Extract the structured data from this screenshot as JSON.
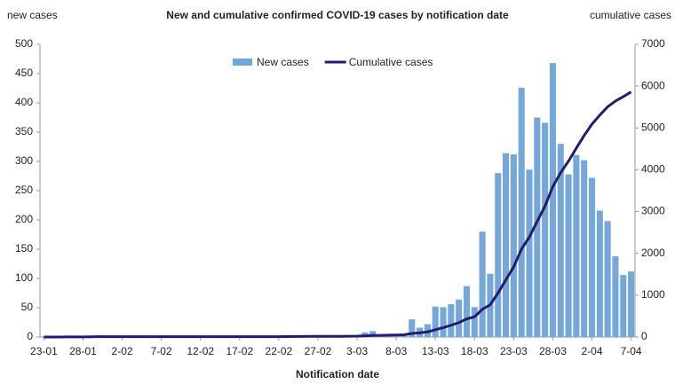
{
  "chart_data": {
    "type": "bar",
    "title": "New and cumulative confirmed COVID-19 cases by notification date",
    "y_label": "new cases",
    "y2_label": "cumulative cases",
    "x_label": "Notification date",
    "categories": [
      "23-01",
      null,
      null,
      null,
      null,
      "28-01",
      null,
      null,
      null,
      null,
      "2-02",
      null,
      null,
      null,
      null,
      "7-02",
      null,
      null,
      null,
      null,
      "12-02",
      null,
      null,
      null,
      null,
      "17-02",
      null,
      null,
      null,
      null,
      "22-02",
      null,
      null,
      null,
      null,
      "27-02",
      null,
      null,
      null,
      null,
      "3-03",
      null,
      null,
      null,
      null,
      "8-03",
      null,
      null,
      null,
      null,
      "13-03",
      null,
      null,
      null,
      null,
      "18-03",
      null,
      null,
      null,
      null,
      "23-03",
      null,
      null,
      null,
      null,
      "28-03",
      null,
      null,
      null,
      null,
      "2-04",
      null,
      null,
      null,
      null,
      "7-04"
    ],
    "series": [
      {
        "name": "New cases",
        "type": "bar",
        "color": "#75a7da",
        "values": [
          1,
          0,
          0,
          1,
          1,
          0,
          1,
          3,
          1,
          0,
          0,
          0,
          0,
          0,
          0,
          0,
          0,
          0,
          0,
          0,
          0,
          0,
          0,
          0,
          0,
          0,
          0,
          0,
          0,
          0,
          0,
          2,
          3,
          1,
          1,
          1,
          0,
          0,
          1,
          1,
          2,
          8,
          10,
          3,
          4,
          4,
          5,
          30,
          16,
          22,
          52,
          51,
          56,
          64,
          87,
          51,
          180,
          108,
          280,
          314,
          312,
          426,
          286,
          375,
          366,
          468,
          330,
          278,
          311,
          302,
          272,
          216,
          198,
          138,
          106,
          112
        ]
      },
      {
        "name": "Cumulative cases",
        "type": "line",
        "axis": "y2",
        "color": "#231c6e",
        "values": [
          1,
          1,
          1,
          2,
          3,
          3,
          4,
          7,
          8,
          8,
          8,
          8,
          8,
          8,
          8,
          8,
          8,
          8,
          8,
          8,
          8,
          8,
          8,
          8,
          8,
          8,
          8,
          8,
          8,
          8,
          8,
          10,
          13,
          14,
          15,
          16,
          16,
          16,
          17,
          18,
          20,
          28,
          38,
          41,
          45,
          49,
          54,
          84,
          100,
          122,
          174,
          225,
          281,
          345,
          432,
          483,
          663,
          771,
          1051,
          1365,
          1677,
          2103,
          2389,
          2764,
          3130,
          3598,
          3928,
          4206,
          4517,
          4819,
          5091,
          5307,
          5505,
          5643,
          5749,
          5861
        ]
      }
    ],
    "ylim": [
      0,
      500
    ],
    "yticks": [
      0,
      50,
      100,
      150,
      200,
      250,
      300,
      350,
      400,
      450,
      500
    ],
    "y2lim": [
      0,
      7000
    ],
    "y2ticks": [
      0,
      1000,
      2000,
      3000,
      4000,
      5000,
      6000,
      7000
    ],
    "legend": "top"
  }
}
